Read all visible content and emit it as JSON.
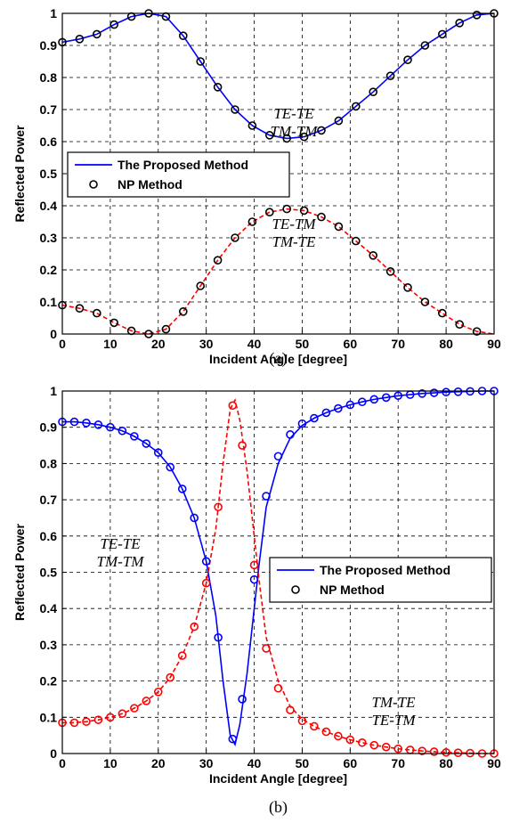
{
  "chart_data": [
    {
      "type": "line",
      "caption": "(a)",
      "xlabel": "Incident Angle [degree]",
      "ylabel": "Reflected Power",
      "xlim": [
        0,
        90
      ],
      "ylim": [
        0,
        1
      ],
      "xticks": [
        "0",
        "10",
        "20",
        "30",
        "40",
        "50",
        "60",
        "70",
        "80",
        "90"
      ],
      "yticks": [
        "0",
        "0.1",
        "0.2",
        "0.3",
        "0.4",
        "0.5",
        "0.6",
        "0.7",
        "0.8",
        "0.9",
        "1"
      ],
      "grid": true,
      "legend_position": "middle-left",
      "legend": [
        "The Proposed Method",
        "NP Method"
      ],
      "annotations": [
        {
          "lines": [
            "TE-TE",
            "TM-TM"
          ],
          "x": 52,
          "y": 0.7
        },
        {
          "lines": [
            "TE-TM",
            "TM-TE"
          ],
          "x": 51,
          "y": 0.33
        }
      ],
      "series": [
        {
          "color": "#0000ff",
          "style": "solid",
          "x": [
            0,
            3.6,
            7.2,
            10.8,
            14.4,
            18,
            21.6,
            25.2,
            28.8,
            32.4,
            36,
            39.6,
            43.2,
            46.8,
            50.4,
            54,
            57.6,
            61.2,
            64.8,
            68.4,
            72,
            75.6,
            79.2,
            82.8,
            86.4,
            90
          ],
          "y": [
            0.91,
            0.92,
            0.935,
            0.965,
            0.99,
            1.0,
            0.99,
            0.93,
            0.85,
            0.77,
            0.7,
            0.65,
            0.62,
            0.61,
            0.615,
            0.635,
            0.665,
            0.71,
            0.755,
            0.805,
            0.855,
            0.9,
            0.935,
            0.97,
            0.995,
            1.0
          ]
        },
        {
          "color": "#ff0000",
          "style": "dashed",
          "x": [
            0,
            3.6,
            7.2,
            10.8,
            14.4,
            18,
            21.6,
            25.2,
            28.8,
            32.4,
            36,
            39.6,
            43.2,
            46.8,
            50.4,
            54,
            57.6,
            61.2,
            64.8,
            68.4,
            72,
            75.6,
            79.2,
            82.8,
            86.4,
            90
          ],
          "y": [
            0.09,
            0.08,
            0.065,
            0.035,
            0.01,
            0.0,
            0.015,
            0.07,
            0.15,
            0.23,
            0.3,
            0.35,
            0.38,
            0.39,
            0.385,
            0.365,
            0.335,
            0.29,
            0.245,
            0.195,
            0.145,
            0.1,
            0.065,
            0.03,
            0.008,
            0.0
          ]
        },
        {
          "color": "#000000",
          "marker": "circle",
          "x": [
            0,
            3.6,
            7.2,
            10.8,
            14.4,
            18,
            21.6,
            25.2,
            28.8,
            32.4,
            36,
            39.6,
            43.2,
            46.8,
            50.4,
            54,
            57.6,
            61.2,
            64.8,
            68.4,
            72,
            75.6,
            79.2,
            82.8,
            86.4,
            90
          ],
          "y": [
            0.91,
            0.92,
            0.935,
            0.965,
            0.99,
            1.0,
            0.99,
            0.93,
            0.85,
            0.77,
            0.7,
            0.65,
            0.62,
            0.61,
            0.615,
            0.635,
            0.665,
            0.71,
            0.755,
            0.805,
            0.855,
            0.9,
            0.935,
            0.97,
            0.995,
            1.0
          ]
        },
        {
          "color": "#000000",
          "marker": "circle",
          "x": [
            0,
            3.6,
            7.2,
            10.8,
            14.4,
            18,
            21.6,
            25.2,
            28.8,
            32.4,
            36,
            39.6,
            43.2,
            46.8,
            50.4,
            54,
            57.6,
            61.2,
            64.8,
            68.4,
            72,
            75.6,
            79.2,
            82.8,
            86.4
          ],
          "y": [
            0.09,
            0.08,
            0.065,
            0.035,
            0.01,
            0.0,
            0.015,
            0.07,
            0.15,
            0.23,
            0.3,
            0.35,
            0.38,
            0.39,
            0.385,
            0.365,
            0.335,
            0.29,
            0.245,
            0.195,
            0.145,
            0.1,
            0.065,
            0.03,
            0.008
          ]
        }
      ]
    },
    {
      "type": "line",
      "caption": "(b)",
      "xlabel": "Incident Angle [degree]",
      "ylabel": "Reflected Power",
      "xlim": [
        0,
        90
      ],
      "ylim": [
        0,
        1
      ],
      "xticks": [
        "0",
        "10",
        "20",
        "30",
        "40",
        "50",
        "60",
        "70",
        "80",
        "90"
      ],
      "yticks": [
        "0",
        "0.1",
        "0.2",
        "0.3",
        "0.4",
        "0.5",
        "0.6",
        "0.7",
        "0.8",
        "0.9",
        "1"
      ],
      "grid": true,
      "legend_position": "middle-right",
      "legend": [
        "The Proposed Method",
        "NP Method"
      ],
      "annotations": [
        {
          "lines": [
            "TE-TE",
            "TM-TM"
          ],
          "x": 8.5,
          "y": 0.81
        },
        {
          "lines": [
            "TM-TE",
            "TE-TM"
          ],
          "x": 70,
          "y": 0.14
        }
      ],
      "series": [
        {
          "color": "#0000ff",
          "style": "solid",
          "x": [
            0,
            2.5,
            5,
            7.5,
            10,
            12.5,
            15,
            17.5,
            20,
            22.5,
            25,
            27.5,
            30,
            32,
            33.5,
            35,
            36,
            37,
            38.5,
            40,
            41,
            42.5,
            45,
            47.5,
            50,
            52.5,
            55,
            57.5,
            60,
            62.5,
            65,
            67.5,
            70,
            72.5,
            75,
            77.5,
            80,
            82.5,
            85,
            87.5,
            90
          ],
          "y": [
            0.915,
            0.915,
            0.912,
            0.907,
            0.9,
            0.89,
            0.875,
            0.855,
            0.83,
            0.79,
            0.73,
            0.65,
            0.53,
            0.38,
            0.2,
            0.05,
            0.025,
            0.08,
            0.22,
            0.4,
            0.52,
            0.68,
            0.8,
            0.87,
            0.905,
            0.925,
            0.94,
            0.952,
            0.962,
            0.97,
            0.977,
            0.982,
            0.987,
            0.99,
            0.993,
            0.995,
            0.997,
            0.998,
            0.999,
            1.0,
            1.0
          ]
        },
        {
          "color": "#ff0000",
          "style": "dashed",
          "x": [
            0,
            2.5,
            5,
            7.5,
            10,
            12.5,
            15,
            17.5,
            20,
            22.5,
            25,
            27.5,
            30,
            32,
            33.5,
            35,
            36,
            37,
            38.5,
            40,
            41,
            42.5,
            45,
            47.5,
            50,
            52.5,
            55,
            57.5,
            60,
            62.5,
            65,
            67.5,
            70,
            72.5,
            75,
            77.5,
            80,
            82.5,
            85,
            87.5,
            90
          ],
          "y": [
            0.085,
            0.085,
            0.088,
            0.093,
            0.1,
            0.11,
            0.125,
            0.145,
            0.17,
            0.21,
            0.27,
            0.35,
            0.47,
            0.62,
            0.8,
            0.95,
            0.975,
            0.92,
            0.78,
            0.6,
            0.48,
            0.32,
            0.2,
            0.13,
            0.095,
            0.075,
            0.06,
            0.048,
            0.038,
            0.03,
            0.023,
            0.018,
            0.013,
            0.01,
            0.007,
            0.005,
            0.003,
            0.002,
            0.001,
            0.0,
            0.0
          ]
        },
        {
          "color": "#0000ff",
          "marker": "circle",
          "x": [
            0,
            2.5,
            5,
            7.5,
            10,
            12.5,
            15,
            17.5,
            20,
            22.5,
            25,
            27.5,
            30,
            32.5,
            35.5,
            37.5,
            40,
            42.5,
            45,
            47.5,
            50,
            52.5,
            55,
            57.5,
            60,
            62.5,
            65,
            67.5,
            70,
            72.5,
            75,
            77.5,
            80,
            82.5,
            85,
            87.5,
            90
          ],
          "y": [
            0.915,
            0.915,
            0.912,
            0.907,
            0.9,
            0.89,
            0.875,
            0.855,
            0.83,
            0.79,
            0.73,
            0.65,
            0.53,
            0.32,
            0.04,
            0.15,
            0.48,
            0.71,
            0.82,
            0.88,
            0.91,
            0.925,
            0.94,
            0.952,
            0.962,
            0.97,
            0.977,
            0.982,
            0.987,
            0.99,
            0.993,
            0.995,
            0.997,
            0.998,
            0.999,
            1.0,
            1.0
          ]
        },
        {
          "color": "#ff0000",
          "marker": "circle",
          "x": [
            0,
            2.5,
            5,
            7.5,
            10,
            12.5,
            15,
            17.5,
            20,
            22.5,
            25,
            27.5,
            30,
            32.5,
            35.5,
            37.5,
            40,
            42.5,
            45,
            47.5,
            50,
            52.5,
            55,
            57.5,
            60,
            62.5,
            65,
            67.5,
            70,
            72.5,
            75,
            77.5,
            80,
            82.5,
            85,
            87.5,
            90
          ],
          "y": [
            0.085,
            0.085,
            0.088,
            0.093,
            0.1,
            0.11,
            0.125,
            0.145,
            0.17,
            0.21,
            0.27,
            0.35,
            0.47,
            0.68,
            0.96,
            0.85,
            0.52,
            0.29,
            0.18,
            0.12,
            0.09,
            0.075,
            0.06,
            0.048,
            0.038,
            0.03,
            0.023,
            0.018,
            0.013,
            0.01,
            0.007,
            0.005,
            0.003,
            0.002,
            0.001,
            0.0,
            0.0
          ]
        }
      ]
    }
  ]
}
